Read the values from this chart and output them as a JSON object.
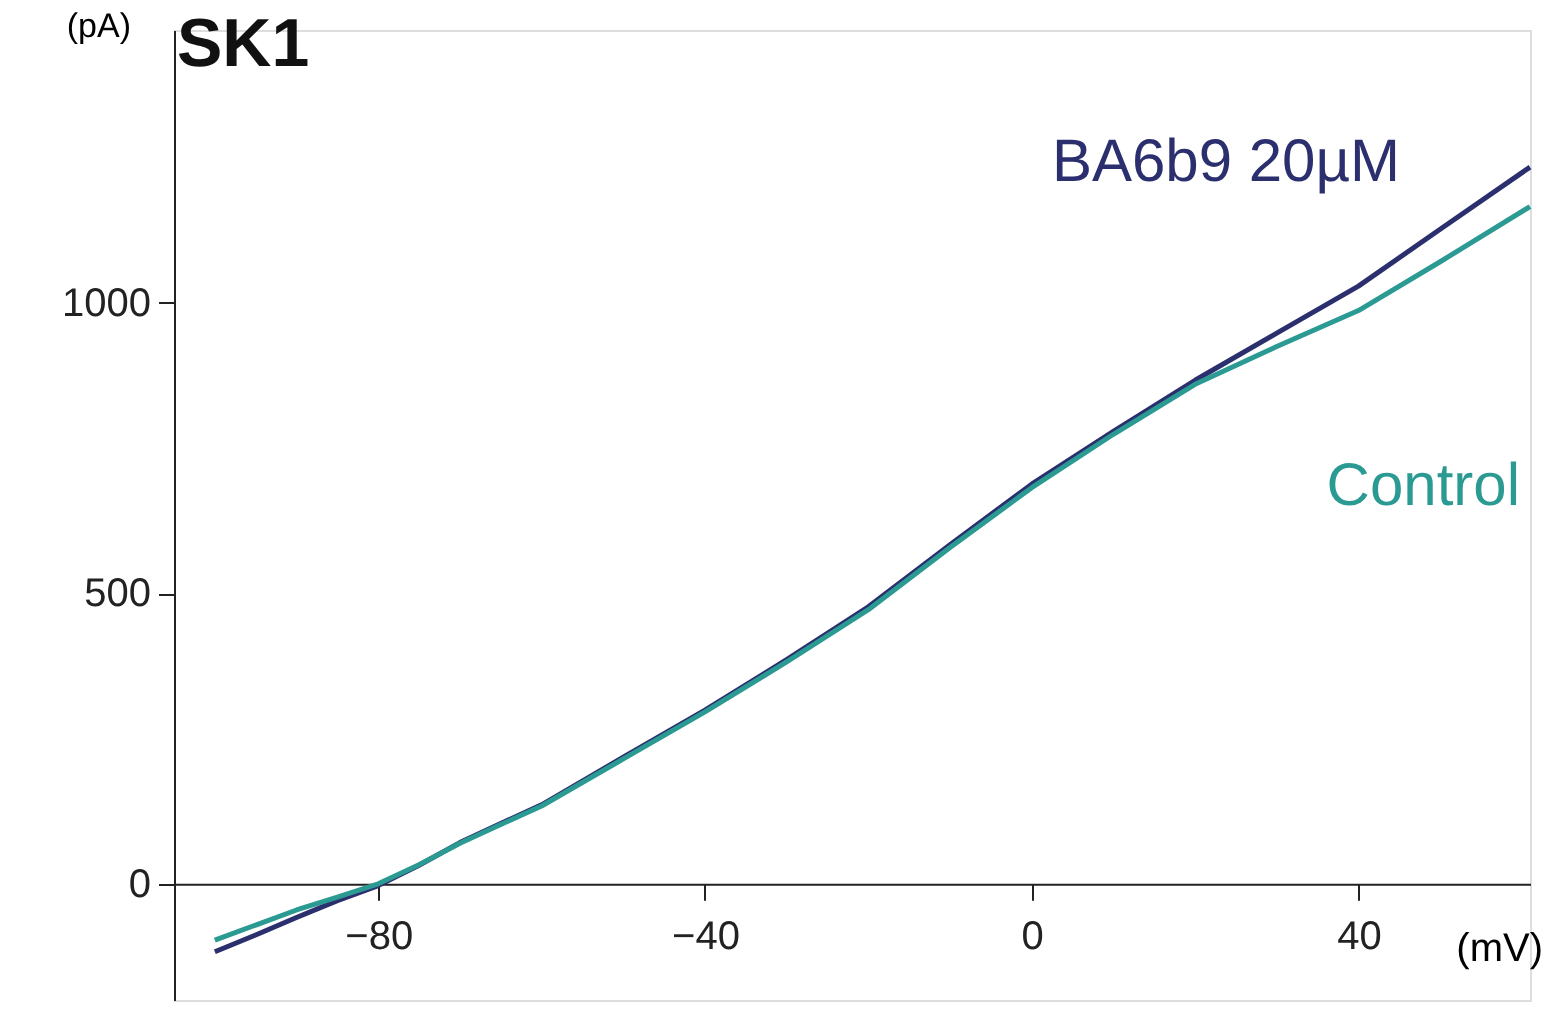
{
  "chart_data": {
    "type": "line",
    "title": "SK1",
    "xlabel": "(mV)",
    "ylabel": "(pA)",
    "xlim": [
      -105,
      61
    ],
    "ylim": [
      -200,
      1470
    ],
    "xticks": [
      -80,
      -40,
      0,
      40
    ],
    "yticks": [
      0,
      500,
      1000
    ],
    "grid": false,
    "legend": false,
    "line_style": "solid",
    "marker": "none",
    "series": [
      {
        "name": "BA6b9 20µM",
        "color": "#2b2f6e",
        "x": [
          -100,
          -95,
          -90,
          -85,
          -80,
          -75,
          -70,
          -65,
          -60,
          -50,
          -40,
          -30,
          -20,
          -10,
          0,
          10,
          20,
          30,
          40,
          50,
          61
        ],
        "values": [
          -117,
          -88,
          -58,
          -29,
          -3,
          32,
          71,
          104,
          136,
          218,
          299,
          386,
          477,
          584,
          688,
          779,
          867,
          948,
          1029,
          1127,
          1234
        ]
      },
      {
        "name": "Control",
        "color": "#2a9a93",
        "x": [
          -100,
          -95,
          -90,
          -85,
          -80,
          -75,
          -70,
          -65,
          -60,
          -50,
          -40,
          -30,
          -20,
          -10,
          0,
          10,
          20,
          30,
          40,
          50,
          61
        ],
        "values": [
          -97,
          -71,
          -45,
          -23,
          0,
          33,
          70,
          102,
          134,
          215,
          296,
          382,
          472,
          579,
          682,
          774,
          860,
          925,
          987,
          1071,
          1166
        ]
      }
    ]
  }
}
